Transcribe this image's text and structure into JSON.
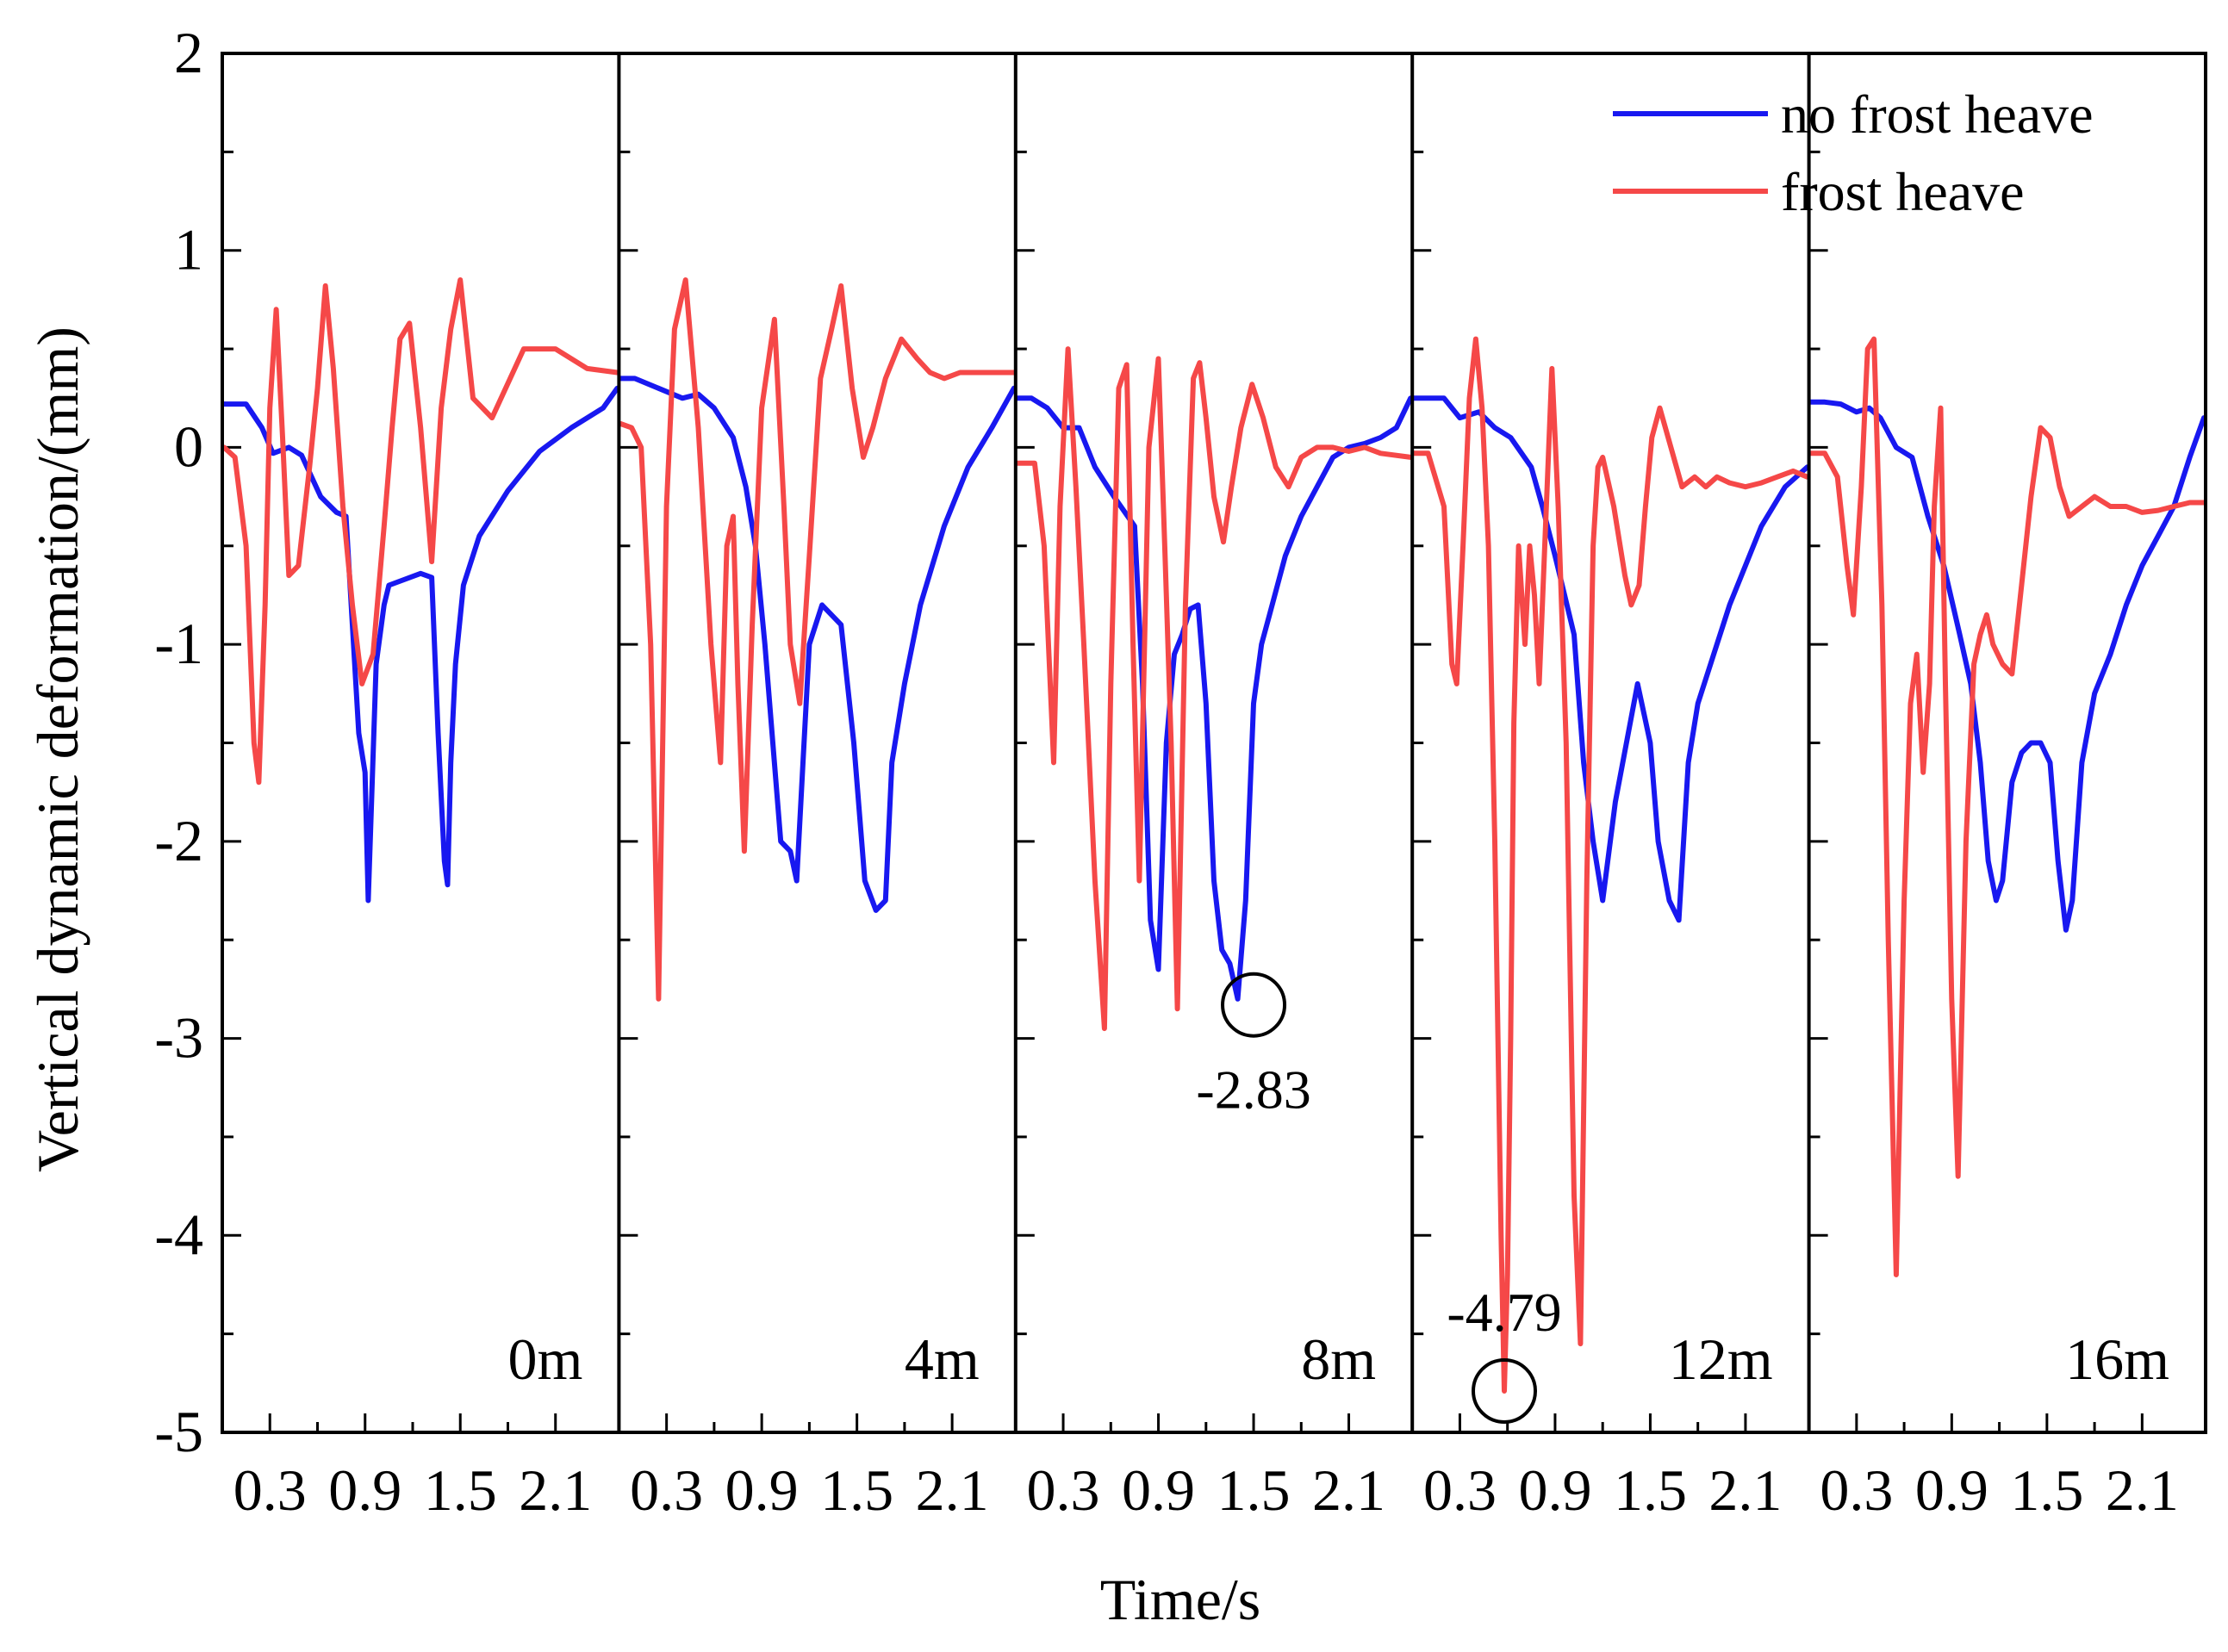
{
  "chart_data": {
    "type": "line",
    "xlabel": "Time/s",
    "ylabel": "Vertical dynamic deformation/(mm)",
    "ylim": [
      -5,
      2
    ],
    "yticks": [
      2,
      1,
      0,
      -1,
      -2,
      -3,
      -4,
      -5
    ],
    "xlim": [
      0.0,
      2.5
    ],
    "xticks": [
      0.3,
      0.9,
      1.5,
      2.1
    ],
    "xtick_labels": [
      "0.3",
      "0.9",
      "1.5",
      "2.1"
    ],
    "legend": {
      "position": "top-right",
      "entries": [
        {
          "name": "no frost heave",
          "color": "#1818f0"
        },
        {
          "name": "frost heave",
          "color": "#f54848"
        }
      ]
    },
    "panels": [
      {
        "label": "0m",
        "series": [
          {
            "name": "no frost heave",
            "color": "#1818f0",
            "x": [
              0.0,
              0.15,
              0.25,
              0.32,
              0.42,
              0.5,
              0.62,
              0.72,
              0.78,
              0.82,
              0.86,
              0.9,
              0.92,
              0.97,
              1.02,
              1.05,
              1.25,
              1.32,
              1.36,
              1.4,
              1.42,
              1.44,
              1.47,
              1.52,
              1.62,
              1.8,
              2.0,
              2.2,
              2.4,
              2.5
            ],
            "y": [
              0.22,
              0.22,
              0.1,
              -0.03,
              0.0,
              -0.04,
              -0.25,
              -0.33,
              -0.35,
              -0.9,
              -1.45,
              -1.65,
              -2.3,
              -1.1,
              -0.8,
              -0.7,
              -0.64,
              -0.66,
              -1.45,
              -2.1,
              -2.22,
              -1.6,
              -1.1,
              -0.7,
              -0.45,
              -0.22,
              -0.02,
              0.1,
              0.2,
              0.3
            ]
          },
          {
            "name": "frost heave",
            "color": "#f54848",
            "x": [
              0.0,
              0.08,
              0.15,
              0.2,
              0.23,
              0.27,
              0.3,
              0.34,
              0.38,
              0.42,
              0.48,
              0.55,
              0.6,
              0.65,
              0.7,
              0.76,
              0.82,
              0.88,
              0.95,
              1.02,
              1.07,
              1.12,
              1.18,
              1.25,
              1.32,
              1.38,
              1.44,
              1.5,
              1.58,
              1.7,
              1.9,
              2.1,
              2.3,
              2.5
            ],
            "y": [
              0.0,
              -0.05,
              -0.5,
              -1.5,
              -1.7,
              -0.8,
              0.2,
              0.7,
              0.05,
              -0.65,
              -0.6,
              -0.1,
              0.3,
              0.82,
              0.4,
              -0.3,
              -0.8,
              -1.2,
              -1.05,
              -0.4,
              0.1,
              0.55,
              0.63,
              0.1,
              -0.58,
              0.2,
              0.6,
              0.85,
              0.25,
              0.15,
              0.5,
              0.5,
              0.4,
              0.38
            ]
          }
        ]
      },
      {
        "label": "4m",
        "series": [
          {
            "name": "no frost heave",
            "color": "#1818f0",
            "x": [
              0.0,
              0.1,
              0.25,
              0.4,
              0.5,
              0.6,
              0.72,
              0.8,
              0.86,
              0.92,
              0.97,
              1.02,
              1.08,
              1.12,
              1.16,
              1.2,
              1.28,
              1.4,
              1.48,
              1.55,
              1.62,
              1.68,
              1.72,
              1.8,
              1.9,
              2.05,
              2.2,
              2.35,
              2.5
            ],
            "y": [
              0.35,
              0.35,
              0.3,
              0.25,
              0.27,
              0.2,
              0.05,
              -0.2,
              -0.5,
              -1.0,
              -1.5,
              -2.0,
              -2.05,
              -2.2,
              -1.6,
              -1.0,
              -0.8,
              -0.9,
              -1.5,
              -2.2,
              -2.35,
              -2.3,
              -1.6,
              -1.2,
              -0.8,
              -0.4,
              -0.1,
              0.1,
              0.3
            ]
          },
          {
            "name": "frost heave",
            "color": "#f54848",
            "x": [
              0.0,
              0.08,
              0.14,
              0.2,
              0.25,
              0.3,
              0.35,
              0.42,
              0.5,
              0.58,
              0.64,
              0.68,
              0.72,
              0.75,
              0.79,
              0.84,
              0.9,
              0.98,
              1.04,
              1.08,
              1.14,
              1.2,
              1.27,
              1.34,
              1.4,
              1.47,
              1.54,
              1.6,
              1.68,
              1.78,
              1.88,
              1.96,
              2.05,
              2.15,
              2.3,
              2.5
            ],
            "y": [
              0.12,
              0.1,
              0.0,
              -1.0,
              -2.8,
              -0.3,
              0.6,
              0.85,
              0.1,
              -1.0,
              -1.6,
              -0.5,
              -0.35,
              -1.2,
              -2.05,
              -0.9,
              0.2,
              0.65,
              -0.3,
              -1.0,
              -1.3,
              -0.55,
              0.35,
              0.6,
              0.82,
              0.3,
              -0.05,
              0.1,
              0.35,
              0.55,
              0.45,
              0.38,
              0.35,
              0.38,
              0.38,
              0.38
            ]
          }
        ]
      },
      {
        "label": "8m",
        "series": [
          {
            "name": "no frost heave",
            "color": "#1818f0",
            "x": [
              0.0,
              0.1,
              0.2,
              0.3,
              0.4,
              0.5,
              0.62,
              0.75,
              0.8,
              0.85,
              0.9,
              0.95,
              1.0,
              1.05,
              1.1,
              1.15,
              1.2,
              1.25,
              1.3,
              1.35,
              1.4,
              1.45,
              1.5,
              1.55,
              1.6,
              1.65,
              1.7,
              1.8,
              1.9,
              2.0,
              2.1,
              2.2,
              2.3,
              2.4,
              2.5
            ],
            "y": [
              0.25,
              0.25,
              0.2,
              0.1,
              0.1,
              -0.1,
              -0.25,
              -0.4,
              -1.2,
              -2.4,
              -2.65,
              -1.5,
              -1.05,
              -0.95,
              -0.82,
              -0.8,
              -1.3,
              -2.2,
              -2.55,
              -2.62,
              -2.8,
              -2.3,
              -1.3,
              -1.0,
              -0.85,
              -0.7,
              -0.55,
              -0.35,
              -0.2,
              -0.05,
              0.0,
              0.02,
              0.05,
              0.1,
              0.25
            ]
          },
          {
            "name": "frost heave",
            "color": "#f54848",
            "x": [
              0.0,
              0.12,
              0.18,
              0.24,
              0.28,
              0.33,
              0.38,
              0.43,
              0.5,
              0.56,
              0.6,
              0.65,
              0.7,
              0.74,
              0.78,
              0.84,
              0.9,
              0.94,
              0.98,
              1.02,
              1.07,
              1.12,
              1.16,
              1.2,
              1.25,
              1.31,
              1.36,
              1.42,
              1.49,
              1.56,
              1.64,
              1.72,
              1.8,
              1.9,
              2.0,
              2.1,
              2.2,
              2.3,
              2.5
            ],
            "y": [
              -0.08,
              -0.08,
              -0.5,
              -1.6,
              -0.3,
              0.5,
              -0.2,
              -1.0,
              -2.2,
              -2.95,
              -1.2,
              0.3,
              0.42,
              -1.0,
              -2.2,
              0.0,
              0.45,
              -0.5,
              -1.5,
              -2.85,
              -0.8,
              0.35,
              0.43,
              0.15,
              -0.25,
              -0.48,
              -0.2,
              0.1,
              0.32,
              0.15,
              -0.1,
              -0.2,
              -0.05,
              0.0,
              0.0,
              -0.02,
              0.0,
              -0.03,
              -0.05
            ]
          }
        ]
      },
      {
        "label": "12m",
        "series": [
          {
            "name": "no frost heave",
            "color": "#1818f0",
            "x": [
              0.0,
              0.1,
              0.2,
              0.3,
              0.42,
              0.52,
              0.62,
              0.75,
              0.82,
              0.9,
              0.96,
              1.02,
              1.08,
              1.14,
              1.2,
              1.28,
              1.35,
              1.42,
              1.5,
              1.55,
              1.62,
              1.68,
              1.74,
              1.8,
              1.9,
              2.0,
              2.1,
              2.2,
              2.35,
              2.5
            ],
            "y": [
              0.25,
              0.25,
              0.25,
              0.15,
              0.18,
              0.1,
              0.05,
              -0.1,
              -0.3,
              -0.55,
              -0.75,
              -0.95,
              -1.6,
              -2.0,
              -2.3,
              -1.8,
              -1.5,
              -1.2,
              -1.5,
              -2.0,
              -2.3,
              -2.4,
              -1.6,
              -1.3,
              -1.05,
              -0.8,
              -0.6,
              -0.4,
              -0.2,
              -0.1
            ]
          },
          {
            "name": "frost heave",
            "color": "#f54848",
            "x": [
              0.0,
              0.1,
              0.2,
              0.25,
              0.28,
              0.32,
              0.36,
              0.4,
              0.44,
              0.48,
              0.52,
              0.56,
              0.58,
              0.6,
              0.62,
              0.64,
              0.67,
              0.71,
              0.74,
              0.77,
              0.8,
              0.84,
              0.88,
              0.92,
              0.97,
              1.02,
              1.06,
              1.1,
              1.14,
              1.17,
              1.2,
              1.27,
              1.34,
              1.38,
              1.43,
              1.47,
              1.51,
              1.56,
              1.63,
              1.7,
              1.78,
              1.85,
              1.92,
              2.0,
              2.1,
              2.2,
              2.3,
              2.4,
              2.5
            ],
            "y": [
              -0.03,
              -0.03,
              -0.3,
              -1.1,
              -1.2,
              -0.5,
              0.25,
              0.55,
              0.2,
              -0.5,
              -2.0,
              -4.0,
              -4.79,
              -4.2,
              -3.0,
              -1.4,
              -0.5,
              -1.0,
              -0.5,
              -0.75,
              -1.2,
              -0.4,
              0.4,
              -0.3,
              -1.5,
              -3.8,
              -4.55,
              -2.2,
              -0.5,
              -0.1,
              -0.05,
              -0.3,
              -0.65,
              -0.8,
              -0.7,
              -0.3,
              0.05,
              0.2,
              0.0,
              -0.2,
              -0.15,
              -0.2,
              -0.15,
              -0.18,
              -0.2,
              -0.18,
              -0.15,
              -0.12,
              -0.15
            ]
          }
        ]
      },
      {
        "label": "16m",
        "series": [
          {
            "name": "no frost heave",
            "color": "#1818f0",
            "x": [
              0.0,
              0.1,
              0.2,
              0.3,
              0.38,
              0.45,
              0.55,
              0.65,
              0.75,
              0.85,
              0.95,
              1.02,
              1.08,
              1.13,
              1.18,
              1.22,
              1.28,
              1.34,
              1.4,
              1.46,
              1.52,
              1.57,
              1.62,
              1.66,
              1.72,
              1.8,
              1.9,
              2.0,
              2.1,
              2.2,
              2.3,
              2.4,
              2.5
            ],
            "y": [
              0.23,
              0.23,
              0.22,
              0.18,
              0.2,
              0.15,
              0.0,
              -0.05,
              -0.35,
              -0.6,
              -0.95,
              -1.2,
              -1.6,
              -2.1,
              -2.3,
              -2.2,
              -1.7,
              -1.55,
              -1.5,
              -1.5,
              -1.6,
              -2.1,
              -2.45,
              -2.3,
              -1.6,
              -1.25,
              -1.05,
              -0.8,
              -0.6,
              -0.45,
              -0.3,
              -0.05,
              0.15
            ]
          },
          {
            "name": "frost heave",
            "color": "#f54848",
            "x": [
              0.0,
              0.1,
              0.18,
              0.24,
              0.28,
              0.33,
              0.37,
              0.41,
              0.46,
              0.5,
              0.55,
              0.6,
              0.64,
              0.68,
              0.72,
              0.76,
              0.79,
              0.83,
              0.86,
              0.9,
              0.94,
              0.99,
              1.04,
              1.08,
              1.12,
              1.16,
              1.22,
              1.28,
              1.34,
              1.4,
              1.46,
              1.52,
              1.58,
              1.64,
              1.72,
              1.8,
              1.9,
              2.0,
              2.1,
              2.2,
              2.3,
              2.4,
              2.5
            ],
            "y": [
              -0.03,
              -0.03,
              -0.15,
              -0.6,
              -0.85,
              -0.2,
              0.5,
              0.55,
              -0.8,
              -2.5,
              -4.2,
              -2.3,
              -1.3,
              -1.05,
              -1.65,
              -1.2,
              -0.3,
              0.2,
              -1.2,
              -2.8,
              -3.7,
              -2.0,
              -1.1,
              -0.95,
              -0.85,
              -1.0,
              -1.1,
              -1.15,
              -0.7,
              -0.25,
              0.1,
              0.05,
              -0.2,
              -0.35,
              -0.3,
              -0.25,
              -0.3,
              -0.3,
              -0.33,
              -0.32,
              -0.3,
              -0.28,
              -0.28
            ]
          }
        ]
      }
    ],
    "annotations": [
      {
        "panel": 2,
        "series": "no frost heave",
        "x": 1.5,
        "y": -2.83,
        "text": "-2.83",
        "marker": "circle",
        "text_placement": "below"
      },
      {
        "panel": 3,
        "series": "frost heave",
        "x": 0.58,
        "y": -4.79,
        "text": "-4.79",
        "marker": "circle",
        "text_placement": "above"
      }
    ]
  }
}
